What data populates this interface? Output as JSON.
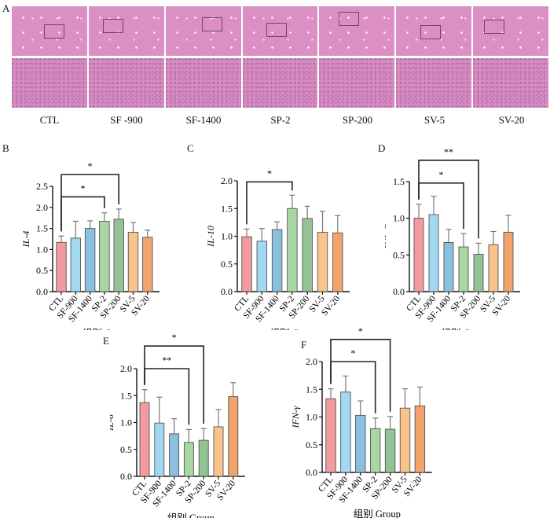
{
  "panel_a": {
    "letter": "A",
    "groups": [
      "CTL",
      "SF -900",
      "SF-1400",
      "SP-2",
      "SP-200",
      "SV-5",
      "SV-20"
    ],
    "image_rows": [
      "low-magnification H&E liver section",
      "high-magnification H&E liver section"
    ]
  },
  "colors": {
    "CTL": "#f29aa0",
    "SF-900": "#a3d8f3",
    "SF-1400": "#8bbfdf",
    "SP-2": "#a9d6a3",
    "SP-200": "#93c294",
    "SV-5": "#f8c48b",
    "SV-20": "#f2a46c",
    "tissue_low": "#dc8fc2",
    "tissue_high": "#d98bbe"
  },
  "chart_data": [
    {
      "id": "B",
      "letter": "B",
      "type": "bar",
      "title": "",
      "xlabel": "组别 Group",
      "ylabel": "IL-4",
      "categories": [
        "CTL",
        "SF-900",
        "SF-1400",
        "SP-2",
        "SP-200",
        "SV-5",
        "SV-20"
      ],
      "values": [
        1.17,
        1.27,
        1.5,
        1.67,
        1.72,
        1.41,
        1.29
      ],
      "errors": [
        0.15,
        0.4,
        0.18,
        0.2,
        0.24,
        0.23,
        0.17
      ],
      "ylim": [
        0,
        2.5
      ],
      "yticks": [
        "0.0",
        "0.5",
        "1.0",
        "1.5",
        "2.0",
        "2.5"
      ],
      "ytick_values": [
        0,
        0.5,
        1.0,
        1.5,
        2.0,
        2.5
      ],
      "significance": [
        {
          "from": 0,
          "to": 3,
          "label": "*",
          "level": 2.25
        },
        {
          "from": 0,
          "to": 4,
          "label": "*",
          "level": 2.78
        }
      ]
    },
    {
      "id": "C",
      "letter": "C",
      "type": "bar",
      "title": "",
      "xlabel": "组别 Group",
      "ylabel": "IL-10",
      "categories": [
        "CTL",
        "SF-900",
        "SF-1400",
        "SP-2",
        "SP-200",
        "SV-5",
        "SV-20"
      ],
      "values": [
        0.99,
        0.91,
        1.12,
        1.5,
        1.32,
        1.07,
        1.06
      ],
      "errors": [
        0.14,
        0.23,
        0.14,
        0.24,
        0.22,
        0.38,
        0.31
      ],
      "ylim": [
        0,
        2.0
      ],
      "yticks": [
        "0.0",
        "0.5",
        "1.0",
        "1.5",
        "2.0"
      ],
      "ytick_values": [
        0,
        0.5,
        1.0,
        1.5,
        2.0
      ],
      "significance": [
        {
          "from": 0,
          "to": 3,
          "label": "*",
          "level": 1.98
        }
      ]
    },
    {
      "id": "D",
      "letter": "D",
      "type": "bar",
      "title": "",
      "xlabel": "组别 Group",
      "ylabel": "TNF-α",
      "categories": [
        "CTL",
        "SF-900",
        "SF-1400",
        "SP-2",
        "SP-200",
        "SV-5",
        "SV-20"
      ],
      "values": [
        1.0,
        1.05,
        0.67,
        0.61,
        0.51,
        0.64,
        0.81
      ],
      "errors": [
        0.19,
        0.25,
        0.18,
        0.18,
        0.15,
        0.18,
        0.23
      ],
      "ylim": [
        0,
        1.5
      ],
      "yticks": [
        "0.0",
        "0.5",
        "1.0",
        "1.5"
      ],
      "ytick_values": [
        0,
        0.5,
        1.0,
        1.5
      ],
      "significance": [
        {
          "from": 0,
          "to": 3,
          "label": "*",
          "level": 1.48
        },
        {
          "from": 0,
          "to": 4,
          "label": "**",
          "level": 1.79
        }
      ]
    },
    {
      "id": "E",
      "letter": "E",
      "type": "bar",
      "title": "",
      "xlabel": "组别 Group",
      "ylabel": "IL-6",
      "categories": [
        "CTL",
        "SF-900",
        "SF-1400",
        "SP-2",
        "SP-200",
        "SV-5",
        "SV-20"
      ],
      "values": [
        1.37,
        0.99,
        0.79,
        0.63,
        0.67,
        0.92,
        1.48
      ],
      "errors": [
        0.24,
        0.48,
        0.28,
        0.24,
        0.22,
        0.32,
        0.26
      ],
      "ylim": [
        0,
        2.0
      ],
      "yticks": [
        "0.0",
        "0.5",
        "1.0",
        "1.5",
        "2.0"
      ],
      "ytick_values": [
        0,
        0.5,
        1.0,
        1.5,
        2.0
      ],
      "significance": [
        {
          "from": 0,
          "to": 3,
          "label": "**",
          "level": 2.0
        },
        {
          "from": 0,
          "to": 4,
          "label": "*",
          "level": 2.42
        }
      ]
    },
    {
      "id": "F",
      "letter": "F",
      "type": "bar",
      "title": "",
      "xlabel": "组别 Group",
      "ylabel": "IFN-γ",
      "categories": [
        "CTL",
        "SF-900",
        "SF-1400",
        "SP-2",
        "SP-200",
        "SV-5",
        "SV-20"
      ],
      "values": [
        1.33,
        1.45,
        1.03,
        0.79,
        0.78,
        1.16,
        1.2
      ],
      "errors": [
        0.18,
        0.29,
        0.26,
        0.19,
        0.23,
        0.35,
        0.34
      ],
      "ylim": [
        0,
        2.0
      ],
      "yticks": [
        "0.0",
        "0.5",
        "1.0",
        "1.5",
        "2.0"
      ],
      "ytick_values": [
        0,
        0.5,
        1.0,
        1.5,
        2.0
      ],
      "significance": [
        {
          "from": 0,
          "to": 3,
          "label": "*",
          "level": 2.0
        },
        {
          "from": 0,
          "to": 4,
          "label": "*",
          "level": 2.4
        }
      ]
    }
  ]
}
